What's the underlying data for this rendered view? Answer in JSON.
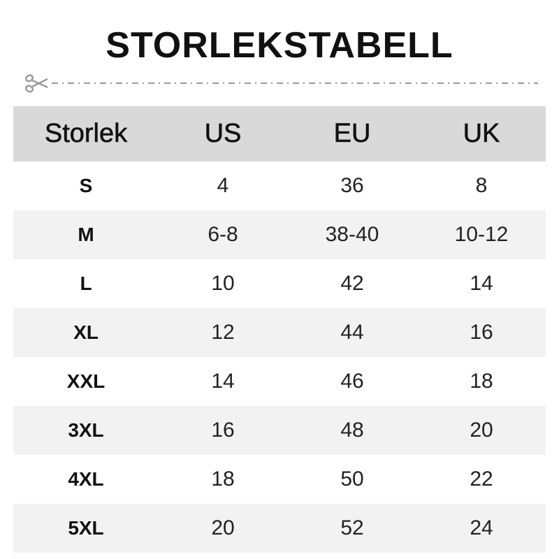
{
  "title": "STORLEKSTABELL",
  "icons": {
    "cut": "scissors-icon"
  },
  "colors": {
    "header_bg": "#d9d9d9",
    "alt_row_bg": "#f2f2f2",
    "cutline": "#9a9a9a"
  },
  "table": {
    "headers": [
      "Storlek",
      "US",
      "EU",
      "UK"
    ],
    "rows": [
      [
        "S",
        "4",
        "36",
        "8"
      ],
      [
        "M",
        "6-8",
        "38-40",
        "10-12"
      ],
      [
        "L",
        "10",
        "42",
        "14"
      ],
      [
        "XL",
        "12",
        "44",
        "16"
      ],
      [
        "XXL",
        "14",
        "46",
        "18"
      ],
      [
        "3XL",
        "16",
        "48",
        "20"
      ],
      [
        "4XL",
        "18",
        "50",
        "22"
      ],
      [
        "5XL",
        "20",
        "52",
        "24"
      ]
    ]
  }
}
